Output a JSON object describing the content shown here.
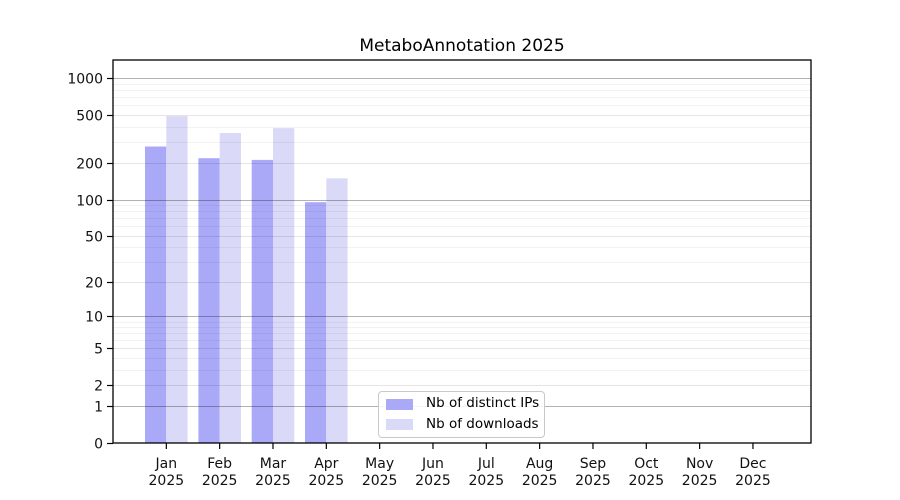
{
  "title": "MetaboAnnotation 2025",
  "chart_data": {
    "type": "bar",
    "title": "MetaboAnnotation 2025",
    "months": [
      "Jan",
      "Feb",
      "Mar",
      "Apr",
      "May",
      "Jun",
      "Jul",
      "Aug",
      "Sep",
      "Oct",
      "Nov",
      "Dec"
    ],
    "year_label": "2025",
    "categories": [
      "Jan 2025",
      "Feb 2025",
      "Mar 2025",
      "Apr 2025",
      "May 2025",
      "Jun 2025",
      "Jul 2025",
      "Aug 2025",
      "Sep 2025",
      "Oct 2025",
      "Nov 2025",
      "Dec 2025"
    ],
    "series": [
      {
        "name": "Nb of distinct IPs",
        "color": "#a9a9f8",
        "values": [
          275,
          220,
          213,
          95,
          0,
          0,
          0,
          0,
          0,
          0,
          0,
          0
        ]
      },
      {
        "name": "Nb of downloads",
        "color": "#dadaf8",
        "values": [
          490,
          355,
          390,
          150,
          0,
          0,
          0,
          0,
          0,
          0,
          0,
          0
        ]
      }
    ],
    "yscale": "log1p",
    "yticks": [
      0,
      1,
      2,
      5,
      10,
      20,
      50,
      100,
      200,
      500,
      1000
    ],
    "ylim": [
      0,
      1420
    ],
    "grid": true,
    "legend_position": "lower center",
    "colors": {
      "grid_major": "rgba(0,0,0,0.30)",
      "grid_mid": "rgba(0,0,0,0.10)",
      "grid_minor": "rgba(0,0,0,0.05)",
      "spine": "#000000",
      "tick_label": "#111111"
    }
  }
}
